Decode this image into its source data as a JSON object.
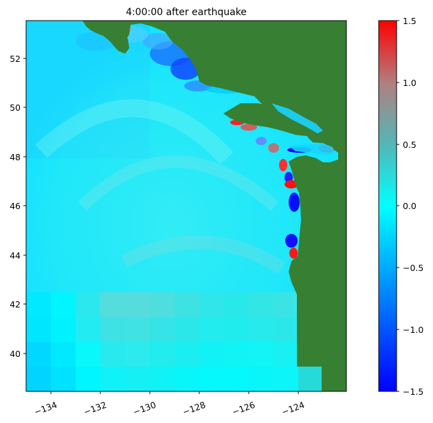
{
  "chart_data": {
    "type": "heatmap",
    "title": "4:00:00 after earthquake",
    "x_ticks": [
      "−134",
      "−132",
      "−130",
      "−128",
      "−126",
      "−124"
    ],
    "x_tick_values": [
      -134,
      -132,
      -130,
      -128,
      -126,
      -124
    ],
    "y_ticks": [
      "40",
      "42",
      "44",
      "46",
      "48",
      "50",
      "52"
    ],
    "y_tick_values": [
      40,
      42,
      44,
      46,
      48,
      50,
      52
    ],
    "xlim": [
      -135.0,
      -122.0
    ],
    "ylim": [
      38.5,
      53.5
    ],
    "colorbar": {
      "ticks": [
        "−1.5",
        "−1.0",
        "−0.5",
        "0.0",
        "0.5",
        "1.0",
        "1.5"
      ],
      "tick_values": [
        -1.5,
        -1.0,
        -0.5,
        0.0,
        0.5,
        1.0,
        1.5
      ],
      "range": [
        -1.5,
        1.5
      ],
      "colormap": [
        "#0000ff",
        "#00b0ff",
        "#00ffff",
        "#a0a0a0",
        "#ff0000"
      ]
    },
    "land_color": "#377f32"
  }
}
